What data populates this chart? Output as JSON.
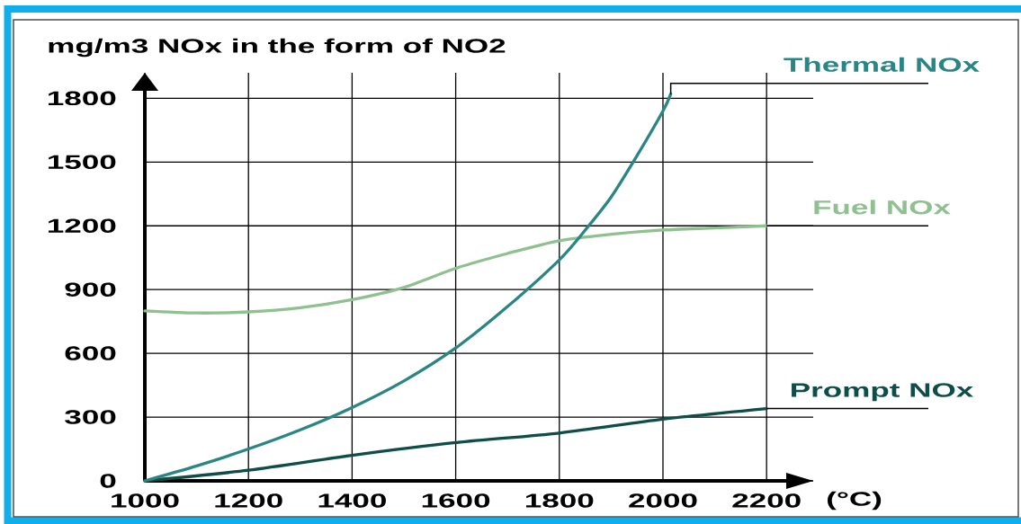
{
  "chart_data": {
    "type": "line",
    "xlabel": "(°C)",
    "ylabel": "mg/m3 NOx in the form of NO2",
    "xlim": [
      1000,
      2290
    ],
    "ylim": [
      0,
      1920
    ],
    "xticks": [
      1000,
      1200,
      1400,
      1600,
      1800,
      2000,
      2200
    ],
    "yticks": [
      0,
      300,
      600,
      900,
      1200,
      1500,
      1800
    ],
    "grid": true,
    "series": [
      {
        "name": "Thermal NOx",
        "color": "#2a8585",
        "x": [
          1000,
          1100,
          1200,
          1300,
          1400,
          1500,
          1600,
          1700,
          1800,
          1850,
          1900,
          1950,
          2000,
          2015
        ],
        "values": [
          0,
          70,
          150,
          240,
          345,
          470,
          625,
          820,
          1040,
          1180,
          1335,
          1530,
          1740,
          1820
        ]
      },
      {
        "name": "Fuel NOx",
        "color": "#8fc08f",
        "x": [
          1000,
          1100,
          1200,
          1300,
          1400,
          1500,
          1600,
          1700,
          1800,
          1900,
          2000,
          2100,
          2200
        ],
        "values": [
          800,
          790,
          795,
          815,
          853,
          910,
          1000,
          1070,
          1130,
          1160,
          1180,
          1190,
          1200
        ]
      },
      {
        "name": "Prompt NOx",
        "color": "#0e4d48",
        "x": [
          1000,
          1200,
          1400,
          1600,
          1800,
          2000,
          2200
        ],
        "values": [
          0,
          50,
          120,
          180,
          225,
          290,
          340
        ]
      }
    ]
  }
}
